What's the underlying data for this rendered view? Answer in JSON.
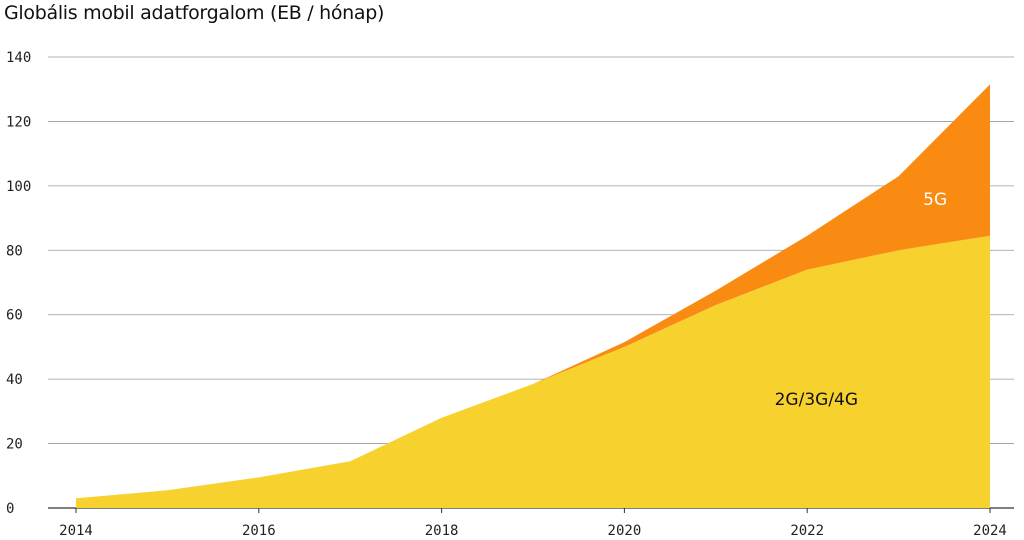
{
  "chart_data": {
    "type": "area",
    "stacked": true,
    "title": "Globális mobil adatforgalom (EB / hónap)",
    "xlabel": "",
    "ylabel": "",
    "xlim": [
      2014,
      2024
    ],
    "ylim": [
      0,
      140
    ],
    "grid": true,
    "x_ticks": [
      "2014",
      "2016",
      "2018",
      "2020",
      "2022",
      "2024"
    ],
    "y_ticks": [
      "0",
      "20",
      "40",
      "60",
      "80",
      "100",
      "120",
      "140"
    ],
    "x": [
      2014,
      2015,
      2016,
      2017,
      2018,
      2019,
      2020,
      2021,
      2022,
      2023,
      2024
    ],
    "series": [
      {
        "name": "2G/3G/4G",
        "color": "#F7D22F",
        "values": [
          3,
          5.5,
          9.5,
          14.5,
          28,
          38.5,
          50,
          63,
          74,
          80,
          84.5
        ]
      },
      {
        "name": "5G",
        "color": "#FA8B12",
        "values": [
          0,
          0,
          0,
          0,
          0,
          0,
          1.5,
          4.5,
          10.5,
          23,
          47
        ]
      }
    ]
  }
}
